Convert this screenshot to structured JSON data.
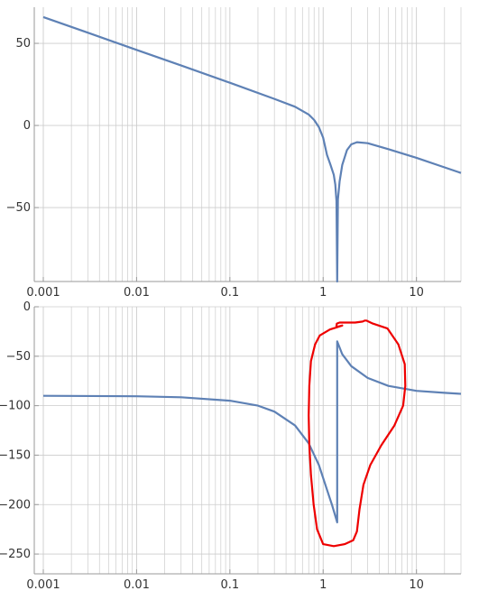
{
  "colors": {
    "series": "#5E81B5",
    "grid": "#cccccc",
    "axis": "#9a9a9a",
    "annotation": "#ee0000"
  },
  "chart_data": [
    {
      "type": "line",
      "title": "",
      "xlabel": "",
      "ylabel": "",
      "x_scale": "log",
      "xlim": [
        0.001,
        30
      ],
      "ylim": [
        -95,
        72
      ],
      "x_ticks": [
        0.001,
        0.01,
        0.1,
        1,
        10
      ],
      "x_tick_labels": [
        "0.001",
        "0.01",
        "0.1",
        "1",
        "10"
      ],
      "y_ticks": [
        50,
        0,
        -50
      ],
      "y_tick_labels": [
        "50",
        "0",
        "−50"
      ],
      "grid": "vertical log minor lines",
      "series": [
        {
          "x": [
            0.001,
            0.003,
            0.01,
            0.03,
            0.1,
            0.3,
            0.5,
            0.7,
            0.8,
            0.9,
            1.0,
            1.1,
            1.2,
            1.3,
            1.35,
            1.39,
            1.414,
            1.44,
            1.5,
            1.6,
            1.8,
            2.0,
            2.3,
            3.0,
            5.0,
            10,
            20,
            30
          ],
          "values": [
            66,
            56.5,
            46,
            36.5,
            26,
            16.2,
            11.4,
            6.7,
            3.4,
            -1.0,
            -7.4,
            -17.9,
            -24,
            -30,
            -36,
            -46,
            -95,
            -45,
            -34,
            -24,
            -15,
            -11.5,
            -10.2,
            -10.8,
            -14.4,
            -19.7,
            -25.5,
            -28.9
          ]
        }
      ]
    },
    {
      "type": "line",
      "title": "",
      "xlabel": "",
      "ylabel": "",
      "x_scale": "log",
      "xlim": [
        0.001,
        30
      ],
      "ylim": [
        -270,
        0
      ],
      "x_ticks": [
        0.001,
        0.01,
        0.1,
        1,
        10
      ],
      "x_tick_labels": [
        "0.001",
        "0.01",
        "0.1",
        "1",
        "10"
      ],
      "y_ticks": [
        0,
        -50,
        -100,
        -150,
        -200,
        -250
      ],
      "y_tick_labels": [
        "0",
        "−50",
        "−100",
        "−150",
        "−200",
        "−250"
      ],
      "grid": "vertical log minor lines",
      "series": [
        {
          "x": [
            0.001,
            0.01,
            0.03,
            0.1,
            0.2,
            0.3,
            0.5,
            0.7,
            0.9,
            1.1,
            1.25,
            1.414,
            1.414,
            1.6,
            2.0,
            3.0,
            5.0,
            10,
            20,
            30
          ],
          "values": [
            -90,
            -90.5,
            -91.5,
            -95,
            -100,
            -106,
            -120,
            -138,
            -160,
            -185,
            -201,
            -218,
            -35,
            -48,
            -60,
            -72,
            -80,
            -85,
            -87,
            -88
          ]
        }
      ],
      "annotations": [
        {
          "type": "freehand-loop",
          "color": "#ee0000",
          "x": [
            1.18,
            0.92,
            0.82,
            0.74,
            0.71,
            0.7,
            0.71,
            0.74,
            0.79,
            0.86,
            1.0,
            1.3,
            1.7,
            2.1,
            2.3,
            2.45,
            2.7,
            3.2,
            4.2,
            5.8,
            7.2,
            7.6,
            7.5,
            6.4,
            4.9,
            3.4,
            2.9,
            2.8,
            2.65,
            2.2,
            1.5,
            1.4,
            1.38,
            1.45,
            1.6,
            1.18
          ],
          "y": [
            -23,
            -29,
            -38,
            -55,
            -80,
            -110,
            -140,
            -170,
            -200,
            -225,
            -240,
            -242,
            -240,
            -236,
            -227,
            -205,
            -180,
            -160,
            -140,
            -120,
            -100,
            -80,
            -58,
            -38,
            -22,
            -17,
            -14,
            -14,
            -15,
            -16,
            -16,
            -17,
            -21,
            -20,
            -19,
            -23
          ]
        }
      ]
    }
  ]
}
